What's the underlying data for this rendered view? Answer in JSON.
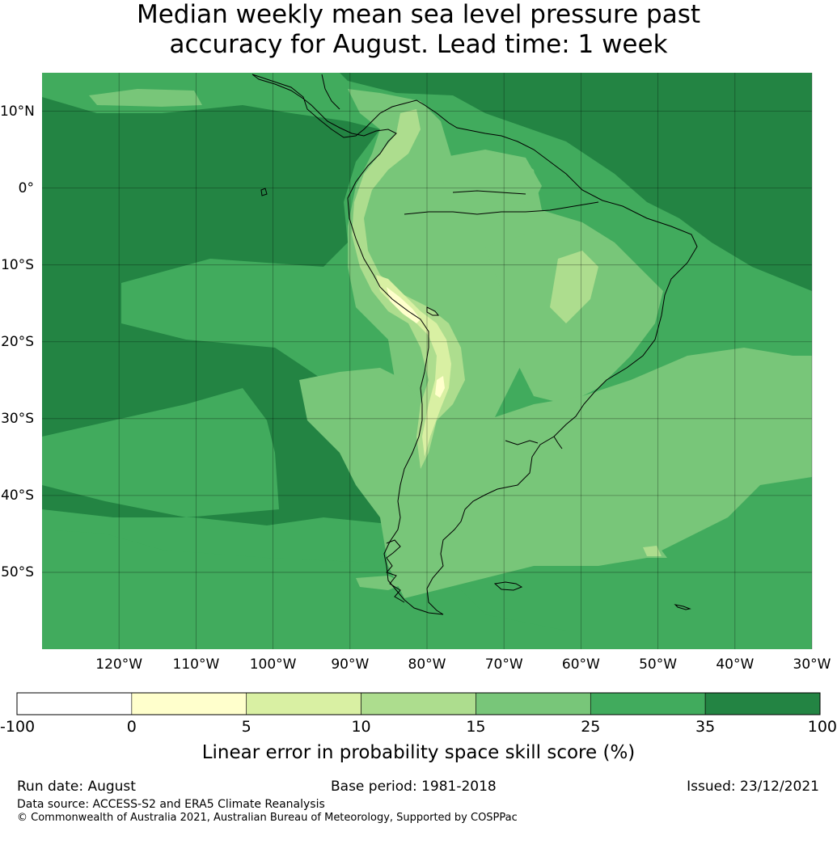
{
  "title": {
    "line1": "Median weekly mean sea level pressure past",
    "line2": "accuracy for August. Lead time: 1 week"
  },
  "map": {
    "lon_range": [
      -130,
      -30
    ],
    "lat_range": [
      -60,
      15
    ],
    "lat_ticks": [
      {
        "value": 10,
        "label": "10°N"
      },
      {
        "value": 0,
        "label": "0°"
      },
      {
        "value": -10,
        "label": "10°S"
      },
      {
        "value": -20,
        "label": "20°S"
      },
      {
        "value": -30,
        "label": "30°S"
      },
      {
        "value": -40,
        "label": "40°S"
      },
      {
        "value": -50,
        "label": "50°S"
      }
    ],
    "lon_ticks": [
      {
        "value": -120,
        "label": "120°W"
      },
      {
        "value": -110,
        "label": "110°W"
      },
      {
        "value": -100,
        "label": "100°W"
      },
      {
        "value": -90,
        "label": "90°W"
      },
      {
        "value": -80,
        "label": "80°W"
      },
      {
        "value": -70,
        "label": "70°W"
      },
      {
        "value": -60,
        "label": "60°W"
      },
      {
        "value": -50,
        "label": "50°W"
      },
      {
        "value": -40,
        "label": "40°W"
      },
      {
        "value": -30,
        "label": "30°W"
      }
    ],
    "gridlines": true
  },
  "colorbar": {
    "bins": [
      {
        "from": -100,
        "to": 0,
        "color": "#ffffff"
      },
      {
        "from": 0,
        "to": 5,
        "color": "#ffffcc"
      },
      {
        "from": 5,
        "to": 10,
        "color": "#d9f0a3"
      },
      {
        "from": 10,
        "to": 15,
        "color": "#addd8e"
      },
      {
        "from": 15,
        "to": 25,
        "color": "#78c679"
      },
      {
        "from": 25,
        "to": 35,
        "color": "#41ab5d"
      },
      {
        "from": 35,
        "to": 100,
        "color": "#238443"
      }
    ],
    "tick_labels": [
      "-100",
      "0",
      "5",
      "10",
      "15",
      "25",
      "35",
      "100"
    ],
    "label": "Linear error in probability space skill score (%)"
  },
  "footer": {
    "run_date": "Run date: August",
    "base_period": "Base period: 1981-2018",
    "issued": "Issued: 23/12/2021",
    "data_source": "Data source: ACCESS-S2 and ERA5 Climate Reanalysis",
    "copyright": "© Commonwealth of Australia 2021, Australian Bureau of Meteorology, Supported by COSPPac"
  }
}
